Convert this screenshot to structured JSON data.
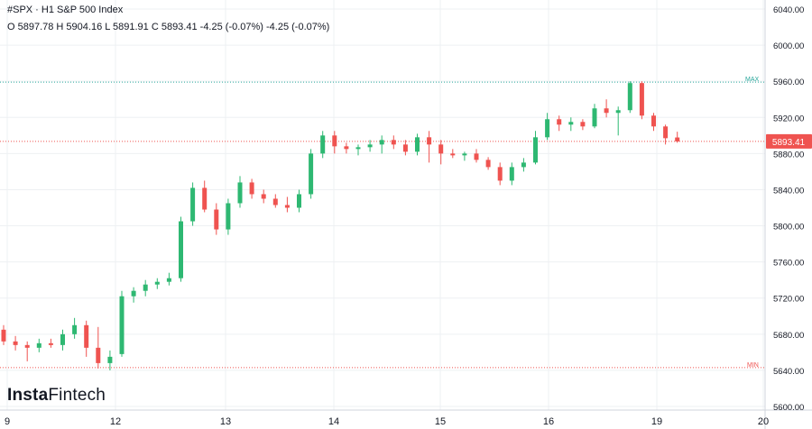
{
  "header": {
    "symbol_line": "#SPX · H1 S&P 500 Index",
    "ohlc_line": "O 5897.78 H 5904.16 L 5891.91 C 5893.41 -4.25 (-0.07%) -4.25 (-0.07%)"
  },
  "brand": {
    "name_bold": "Insta",
    "name_light": "Fintech"
  },
  "colors": {
    "up": "#26a69a",
    "up_fill": "#2eb872",
    "down": "#ef5350",
    "max_line": "#26a69a",
    "min_line": "#ef5350",
    "price_tag": "#ef5350",
    "grid": "#eef0f3"
  },
  "chart_data": {
    "type": "candlestick",
    "title": "#SPX · H1 S&P 500 Index",
    "timeframe": "H1",
    "yaxis": {
      "ticks": [
        5600,
        5640,
        5680,
        5720,
        5760,
        5800,
        5840,
        5880,
        5920,
        5960,
        6000,
        6040
      ],
      "tick_labels": [
        "5600.00",
        "5640.00",
        "5680.00",
        "5720.00",
        "5760.00",
        "5800.00",
        "5840.00",
        "5880.00",
        "5920.00",
        "5960.00",
        "6000.00",
        "6040.00"
      ],
      "ylim": [
        5596,
        6044
      ]
    },
    "xaxis": {
      "labels": [
        "9",
        "12",
        "13",
        "14",
        "15",
        "16",
        "19",
        "20"
      ],
      "xlim": [
        0,
        56
      ]
    },
    "markers": {
      "max": {
        "label": "MAX",
        "value": 5959
      },
      "min": {
        "label": "MIN",
        "value": 5643
      }
    },
    "current_price": {
      "label": "5893.41",
      "value": 5893.41
    },
    "candles": [
      [
        0,
        5685,
        5690,
        5668,
        5672
      ],
      [
        1,
        5672,
        5678,
        5662,
        5668
      ],
      [
        2,
        5668,
        5672,
        5650,
        5665
      ],
      [
        3,
        5665,
        5675,
        5660,
        5670
      ],
      [
        4,
        5670,
        5675,
        5665,
        5668
      ],
      [
        5,
        5668,
        5685,
        5662,
        5680
      ],
      [
        6,
        5680,
        5698,
        5675,
        5690
      ],
      [
        7,
        5690,
        5695,
        5655,
        5665
      ],
      [
        8,
        5665,
        5688,
        5642,
        5648
      ],
      [
        9,
        5648,
        5662,
        5640,
        5655
      ],
      [
        10,
        5658,
        5728,
        5655,
        5722
      ],
      [
        11,
        5722,
        5732,
        5715,
        5728
      ],
      [
        12,
        5728,
        5740,
        5722,
        5735
      ],
      [
        13,
        5735,
        5742,
        5730,
        5738
      ],
      [
        14,
        5738,
        5748,
        5734,
        5742
      ],
      [
        15,
        5742,
        5810,
        5738,
        5805
      ],
      [
        16,
        5805,
        5848,
        5800,
        5842
      ],
      [
        17,
        5842,
        5850,
        5815,
        5818
      ],
      [
        18,
        5818,
        5825,
        5790,
        5796
      ],
      [
        19,
        5796,
        5830,
        5790,
        5825
      ],
      [
        20,
        5825,
        5855,
        5820,
        5848
      ],
      [
        21,
        5848,
        5852,
        5830,
        5835
      ],
      [
        22,
        5835,
        5840,
        5825,
        5830
      ],
      [
        23,
        5830,
        5835,
        5820,
        5823
      ],
      [
        24,
        5823,
        5832,
        5815,
        5820
      ],
      [
        25,
        5820,
        5840,
        5815,
        5835
      ],
      [
        26,
        5835,
        5885,
        5830,
        5880
      ],
      [
        27,
        5880,
        5905,
        5875,
        5900
      ],
      [
        28,
        5900,
        5905,
        5880,
        5888
      ],
      [
        29,
        5888,
        5892,
        5880,
        5885
      ],
      [
        30,
        5885,
        5890,
        5878,
        5887
      ],
      [
        31,
        5887,
        5895,
        5882,
        5890
      ],
      [
        32,
        5890,
        5900,
        5880,
        5895
      ],
      [
        33,
        5895,
        5900,
        5885,
        5890
      ],
      [
        34,
        5890,
        5895,
        5878,
        5882
      ],
      [
        35,
        5882,
        5902,
        5878,
        5898
      ],
      [
        36,
        5898,
        5905,
        5870,
        5890
      ],
      [
        37,
        5890,
        5895,
        5868,
        5880
      ],
      [
        38,
        5880,
        5885,
        5875,
        5878
      ],
      [
        39,
        5878,
        5882,
        5872,
        5880
      ],
      [
        40,
        5880,
        5885,
        5870,
        5873
      ],
      [
        41,
        5873,
        5876,
        5862,
        5865
      ],
      [
        42,
        5865,
        5870,
        5845,
        5850
      ],
      [
        43,
        5850,
        5870,
        5845,
        5865
      ],
      [
        44,
        5865,
        5875,
        5860,
        5870
      ],
      [
        45,
        5870,
        5905,
        5868,
        5898
      ],
      [
        46,
        5898,
        5925,
        5895,
        5918
      ],
      [
        47,
        5918,
        5922,
        5905,
        5912
      ],
      [
        48,
        5912,
        5920,
        5905,
        5915
      ],
      [
        49,
        5915,
        5918,
        5906,
        5910
      ],
      [
        50,
        5910,
        5935,
        5908,
        5930
      ],
      [
        51,
        5930,
        5940,
        5920,
        5925
      ],
      [
        52,
        5925,
        5932,
        5900,
        5928
      ],
      [
        53,
        5928,
        5960,
        5925,
        5958
      ],
      [
        54,
        5958,
        5960,
        5918,
        5922
      ],
      [
        55,
        5922,
        5925,
        5905,
        5910
      ],
      [
        56,
        5910,
        5912,
        5890,
        5897
      ],
      [
        57,
        5897.78,
        5904.16,
        5891.91,
        5893.41
      ]
    ]
  }
}
